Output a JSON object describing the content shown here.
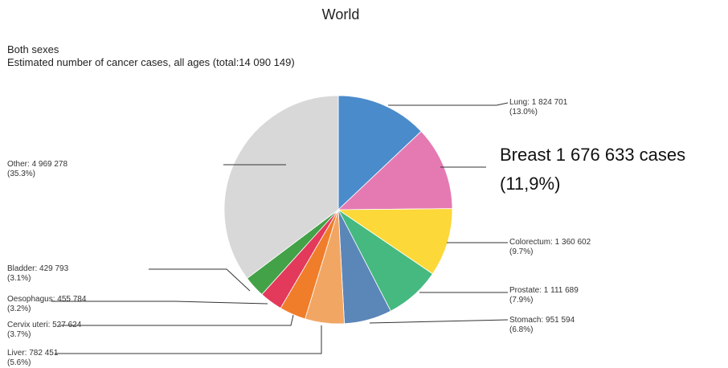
{
  "chart_data": {
    "type": "pie",
    "title": "World",
    "subtitle_1": "Both sexes",
    "subtitle_2": "Estimated number of cancer cases, all ages (total:14 090 149)",
    "total": 14090149,
    "slices": [
      {
        "name": "Lung",
        "value": 1824701,
        "pct": "13.0%",
        "color": "#4a8bcb"
      },
      {
        "name": "Breast",
        "value": 1676633,
        "pct": "11,9%",
        "color": "#e57ab3"
      },
      {
        "name": "Colorectum",
        "value": 1360602,
        "pct": "9.7%",
        "color": "#fcd839"
      },
      {
        "name": "Prostate",
        "value": 1111689,
        "pct": "7.9%",
        "color": "#45b980"
      },
      {
        "name": "Stomach",
        "value": 951594,
        "pct": "6.8%",
        "color": "#5b86b8"
      },
      {
        "name": "Liver",
        "value": 782451,
        "pct": "5.6%",
        "color": "#f2a664"
      },
      {
        "name": "Cervix uteri",
        "value": 527624,
        "pct": "3.7%",
        "color": "#f07d2a"
      },
      {
        "name": "Oesophagus",
        "value": 455784,
        "pct": "3.2%",
        "color": "#e3395b"
      },
      {
        "name": "Bladder",
        "value": 429793,
        "pct": "3.1%",
        "color": "#43a147"
      },
      {
        "name": "Other",
        "value": 4969278,
        "pct": "35.3%",
        "color": "#d8d8d8"
      }
    ],
    "labels": {
      "lung_1": "Lung: 1 824 701",
      "lung_2": "(13.0%)",
      "breast_1": "Breast 1 676 633 cases",
      "breast_2": "(11,9%)",
      "colorectum_1": "Colorectum: 1 360 602",
      "colorectum_2": "(9.7%)",
      "prostate_1": "Prostate: 1 111 689",
      "prostate_2": "(7.9%)",
      "stomach_1": "Stomach: 951 594",
      "stomach_2": "(6.8%)",
      "liver_1": "Liver: 782 451",
      "liver_2": "(5.6%)",
      "cervix_1": "Cervix uteri: 527 624",
      "cervix_2": "(3.7%)",
      "oesophagus_1": "Oesophagus: 455 784",
      "oesophagus_2": "(3.2%)",
      "bladder_1": "Bladder: 429 793",
      "bladder_2": "(3.1%)",
      "other_1": "Other: 4 969 278",
      "other_2": "(35.3%)"
    }
  }
}
